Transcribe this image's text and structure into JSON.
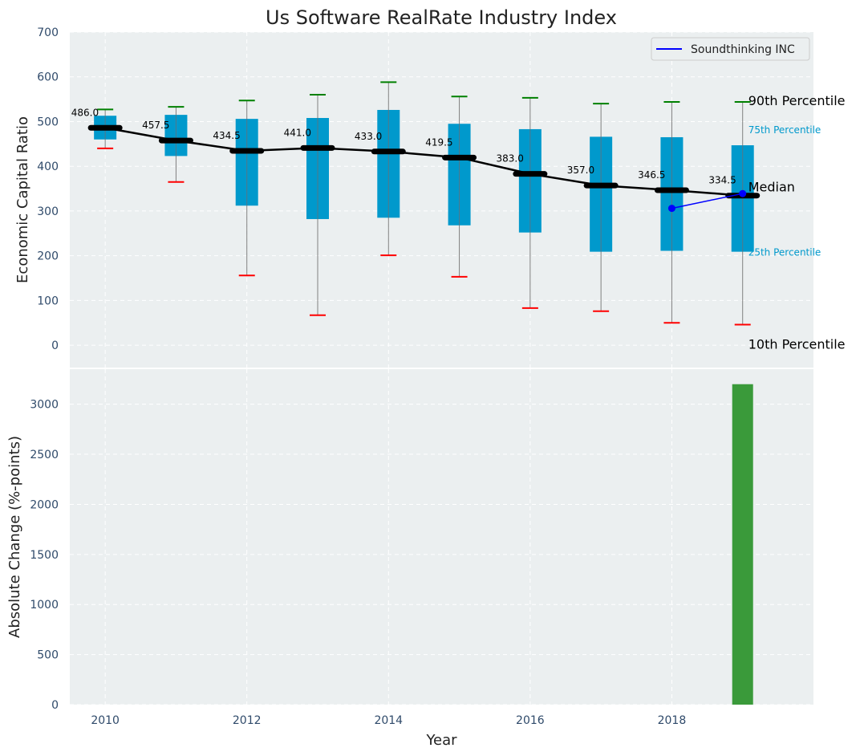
{
  "chart_data": [
    {
      "type": "box",
      "title": "Us Software RealRate Industry Index",
      "xlabel": "",
      "ylabel": "Economic Capital Ratio",
      "ylim": [
        -50,
        700
      ],
      "xlim": [
        2009.5,
        2020
      ],
      "yticks": [
        0,
        100,
        200,
        300,
        400,
        500,
        600,
        700
      ],
      "grid": true,
      "legend": {
        "position": "top-right",
        "entries": [
          "Soundthinking INC"
        ]
      },
      "colors": {
        "box": "#0099cc",
        "median": "#000000",
        "p90": "#008000",
        "p10": "#ff0000",
        "company": "#0000ff",
        "whisker": "#808080"
      },
      "boxes": [
        {
          "x": 2010,
          "p10": 440,
          "p25": 460,
          "median": 486.0,
          "p75": 513,
          "p90": 527,
          "label": "486.0"
        },
        {
          "x": 2011,
          "p10": 365,
          "p25": 423,
          "median": 457.5,
          "p75": 515,
          "p90": 533,
          "label": "457.5"
        },
        {
          "x": 2012,
          "p10": 156,
          "p25": 312,
          "median": 434.5,
          "p75": 506,
          "p90": 547,
          "label": "434.5"
        },
        {
          "x": 2013,
          "p10": 67,
          "p25": 282,
          "median": 441.0,
          "p75": 508,
          "p90": 560,
          "label": "441.0"
        },
        {
          "x": 2014,
          "p10": 201,
          "p25": 285,
          "median": 433.0,
          "p75": 526,
          "p90": 588,
          "label": "433.0"
        },
        {
          "x": 2015,
          "p10": 153,
          "p25": 268,
          "median": 419.5,
          "p75": 495,
          "p90": 556,
          "label": "419.5"
        },
        {
          "x": 2016,
          "p10": 83,
          "p25": 252,
          "median": 383.0,
          "p75": 483,
          "p90": 553,
          "label": "383.0"
        },
        {
          "x": 2017,
          "p10": 76,
          "p25": 209,
          "median": 357.0,
          "p75": 466,
          "p90": 540,
          "label": "357.0"
        },
        {
          "x": 2018,
          "p10": 50,
          "p25": 211,
          "median": 346.5,
          "p75": 465,
          "p90": 544,
          "label": "346.5"
        },
        {
          "x": 2019,
          "p10": 46,
          "p25": 209,
          "median": 334.5,
          "p75": 447,
          "p90": 544,
          "label": "334.5"
        }
      ],
      "company": {
        "name": "Soundthinking INC",
        "x": [
          2018,
          2019
        ],
        "y": [
          306,
          339
        ]
      },
      "annotations": [
        {
          "text": "90th Percentile",
          "y": 544
        },
        {
          "text": "75th Percentile",
          "y": 447
        },
        {
          "text": "Median",
          "y": 334.5
        },
        {
          "text": "25th Percentile",
          "y": 209
        },
        {
          "text": "10th Percentile",
          "y": 46
        }
      ]
    },
    {
      "type": "bar",
      "xlabel": "Year",
      "ylabel": "Absolute Change (%-points)",
      "ylim": [
        0,
        3350
      ],
      "xlim": [
        2009.5,
        2020
      ],
      "yticks": [
        0,
        500,
        1000,
        1500,
        2000,
        2500,
        3000
      ],
      "xticks": [
        2010,
        2012,
        2014,
        2016,
        2018
      ],
      "grid": true,
      "color": "#3a9a3a",
      "x": [
        2019
      ],
      "values": [
        3200
      ]
    }
  ]
}
